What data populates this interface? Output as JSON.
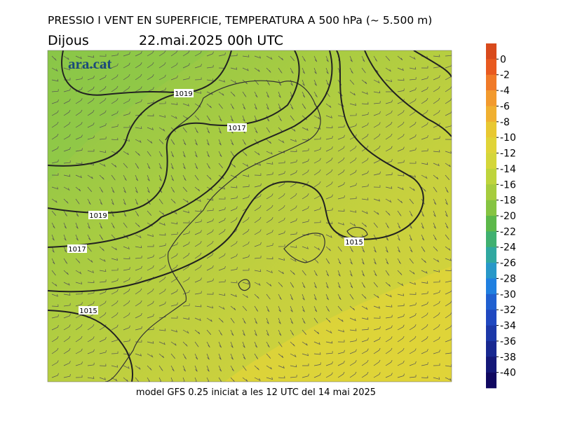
{
  "header": {
    "title": "PRESSIO I VENT EN SUPERFICIE, TEMPERATURA A 500 hPa (~ 5.500 m)",
    "day": "Dijous",
    "date": "22.mai.2025 00h UTC"
  },
  "logo": "ara.cat",
  "isobar_labels": [
    "1019",
    "1017",
    "1019",
    "1017",
    "1015",
    "1015"
  ],
  "colorbar": {
    "lim": [
      -42,
      2
    ],
    "ticks": [
      0,
      -2,
      -4,
      -6,
      -8,
      -10,
      -12,
      -14,
      -16,
      -18,
      -20,
      -22,
      -24,
      -26,
      -28,
      -30,
      -32,
      -34,
      -36,
      -38,
      -40
    ],
    "colors": [
      "#d84a1c",
      "#e85a20",
      "#f07a28",
      "#f29a2e",
      "#f0b030",
      "#e8c832",
      "#e0d438",
      "#d4d63a",
      "#bed43c",
      "#a6cc3e",
      "#86c442",
      "#5cb84a",
      "#40b070",
      "#30a8a0",
      "#2898c8",
      "#2080e0",
      "#2060d0",
      "#2048c0",
      "#1c38a8",
      "#182890",
      "#141878",
      "#100860"
    ]
  },
  "footer": "model GFS 0.25 iniciat a les 12 UTC del 14 mai 2025"
}
